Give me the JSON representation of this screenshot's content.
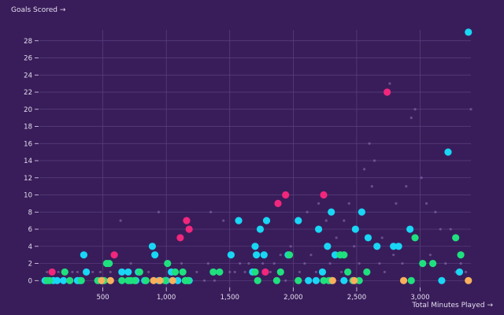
{
  "chart_data": {
    "type": "scatter",
    "title": "",
    "ylabel": "Goals Scored →",
    "xlabel": "Total Minutes Played →",
    "xlim": [
      0,
      3400
    ],
    "ylim": [
      -0.8,
      30
    ],
    "x_ticks": [
      {
        "value": 500,
        "label": "500"
      },
      {
        "value": 1000,
        "label": "1,000"
      },
      {
        "value": 1500,
        "label": "1,500"
      },
      {
        "value": 2000,
        "label": "2,000"
      },
      {
        "value": 2500,
        "label": "2,500"
      },
      {
        "value": 3000,
        "label": "3,000"
      }
    ],
    "y_ticks": [
      {
        "value": 0,
        "label": "0"
      },
      {
        "value": 2,
        "label": "2"
      },
      {
        "value": 4,
        "label": "4"
      },
      {
        "value": 6,
        "label": "6"
      },
      {
        "value": 8,
        "label": "8"
      },
      {
        "value": 10,
        "label": "10"
      },
      {
        "value": 12,
        "label": "12"
      },
      {
        "value": 14,
        "label": "14"
      },
      {
        "value": 16,
        "label": "16"
      },
      {
        "value": 18,
        "label": "18"
      },
      {
        "value": 20,
        "label": "20"
      },
      {
        "value": 22,
        "label": "22"
      },
      {
        "value": 24,
        "label": "24"
      },
      {
        "value": 26,
        "label": "26"
      },
      {
        "value": 28,
        "label": "28"
      }
    ],
    "grid": true,
    "colors": {
      "background": "#391d5a",
      "grid": "#5a4180",
      "cyan": "#19d6f5",
      "green": "#1fe07e",
      "pink": "#f0277c",
      "orange": "#f8b05c",
      "faint": "#8a6fae"
    },
    "series": [
      {
        "color": "cyan",
        "points": [
          [
            45,
            0
          ],
          [
            110,
            0
          ],
          [
            140,
            0
          ],
          [
            190,
            0
          ],
          [
            300,
            0
          ],
          [
            320,
            0
          ],
          [
            350,
            3
          ],
          [
            370,
            1
          ],
          [
            650,
            1
          ],
          [
            700,
            1
          ],
          [
            760,
            0
          ],
          [
            780,
            1
          ],
          [
            830,
            0
          ],
          [
            890,
            4
          ],
          [
            910,
            3
          ],
          [
            940,
            0
          ],
          [
            1000,
            0
          ],
          [
            1040,
            1
          ],
          [
            1090,
            0
          ],
          [
            1150,
            0
          ],
          [
            1180,
            0
          ],
          [
            1510,
            3
          ],
          [
            1570,
            7
          ],
          [
            1680,
            1
          ],
          [
            1700,
            4
          ],
          [
            1710,
            3
          ],
          [
            1740,
            6
          ],
          [
            1770,
            3
          ],
          [
            1790,
            7
          ],
          [
            1960,
            3
          ],
          [
            2040,
            7
          ],
          [
            2120,
            0
          ],
          [
            2180,
            0
          ],
          [
            2200,
            6
          ],
          [
            2230,
            1
          ],
          [
            2270,
            4
          ],
          [
            2300,
            8
          ],
          [
            2330,
            3
          ],
          [
            2400,
            0
          ],
          [
            2490,
            6
          ],
          [
            2540,
            8
          ],
          [
            2590,
            5
          ],
          [
            2660,
            4
          ],
          [
            2790,
            4
          ],
          [
            2830,
            4
          ],
          [
            2920,
            6
          ],
          [
            3170,
            0
          ],
          [
            3220,
            15
          ],
          [
            3310,
            1
          ],
          [
            3380,
            29
          ]
        ]
      },
      {
        "color": "green",
        "points": [
          [
            60,
            0
          ],
          [
            80,
            0
          ],
          [
            200,
            1
          ],
          [
            240,
            0
          ],
          [
            330,
            0
          ],
          [
            460,
            0
          ],
          [
            490,
            0
          ],
          [
            510,
            0
          ],
          [
            530,
            2
          ],
          [
            550,
            2
          ],
          [
            650,
            0
          ],
          [
            700,
            0
          ],
          [
            720,
            0
          ],
          [
            750,
            0
          ],
          [
            790,
            1
          ],
          [
            840,
            0
          ],
          [
            990,
            0
          ],
          [
            1010,
            2
          ],
          [
            1070,
            1
          ],
          [
            1130,
            1
          ],
          [
            1150,
            0
          ],
          [
            1170,
            0
          ],
          [
            1370,
            1
          ],
          [
            1420,
            1
          ],
          [
            1700,
            1
          ],
          [
            1720,
            0
          ],
          [
            1870,
            0
          ],
          [
            1900,
            1
          ],
          [
            1970,
            3
          ],
          [
            2040,
            0
          ],
          [
            2240,
            0
          ],
          [
            2280,
            0
          ],
          [
            2300,
            0
          ],
          [
            2370,
            3
          ],
          [
            2400,
            3
          ],
          [
            2430,
            1
          ],
          [
            2470,
            0
          ],
          [
            2520,
            0
          ],
          [
            2580,
            1
          ],
          [
            2930,
            0
          ],
          [
            2960,
            5
          ],
          [
            3020,
            2
          ],
          [
            3100,
            2
          ],
          [
            3280,
            5
          ],
          [
            3320,
            3
          ]
        ]
      },
      {
        "color": "pink",
        "points": [
          [
            100,
            1
          ],
          [
            590,
            3
          ],
          [
            1110,
            5
          ],
          [
            1160,
            7
          ],
          [
            1180,
            6
          ],
          [
            1780,
            1
          ],
          [
            1880,
            9
          ],
          [
            1940,
            10
          ],
          [
            2240,
            10
          ],
          [
            2740,
            22
          ]
        ]
      },
      {
        "color": "orange",
        "points": [
          [
            490,
            0
          ],
          [
            560,
            0
          ],
          [
            900,
            0
          ],
          [
            950,
            0
          ],
          [
            1050,
            0
          ],
          [
            2310,
            0
          ],
          [
            2480,
            0
          ],
          [
            2870,
            0
          ],
          [
            3380,
            0
          ]
        ]
      }
    ],
    "faint_points": [
      [
        60,
        1
      ],
      [
        150,
        1
      ],
      [
        220,
        1
      ],
      [
        260,
        1
      ],
      [
        300,
        1
      ],
      [
        420,
        1
      ],
      [
        480,
        1
      ],
      [
        560,
        1
      ],
      [
        640,
        7
      ],
      [
        720,
        2
      ],
      [
        800,
        1
      ],
      [
        860,
        1
      ],
      [
        940,
        8
      ],
      [
        1060,
        1
      ],
      [
        1120,
        2
      ],
      [
        1200,
        0
      ],
      [
        1240,
        1
      ],
      [
        1300,
        0
      ],
      [
        1330,
        2
      ],
      [
        1350,
        8
      ],
      [
        1380,
        0
      ],
      [
        1450,
        7
      ],
      [
        1500,
        1
      ],
      [
        1540,
        1
      ],
      [
        1580,
        2
      ],
      [
        1620,
        1
      ],
      [
        1650,
        2
      ],
      [
        1760,
        2
      ],
      [
        1820,
        1
      ],
      [
        1850,
        2
      ],
      [
        1900,
        3
      ],
      [
        1940,
        0
      ],
      [
        1980,
        4
      ],
      [
        2050,
        1
      ],
      [
        2090,
        2
      ],
      [
        2110,
        8
      ],
      [
        2140,
        3
      ],
      [
        2180,
        1
      ],
      [
        2200,
        9
      ],
      [
        2260,
        7
      ],
      [
        2290,
        2
      ],
      [
        2340,
        5
      ],
      [
        2380,
        1
      ],
      [
        2400,
        7
      ],
      [
        2440,
        9
      ],
      [
        2480,
        4
      ],
      [
        2520,
        2
      ],
      [
        2560,
        13
      ],
      [
        2600,
        16
      ],
      [
        2620,
        11
      ],
      [
        2640,
        14
      ],
      [
        2680,
        2
      ],
      [
        2700,
        5
      ],
      [
        2720,
        1
      ],
      [
        2760,
        23
      ],
      [
        2790,
        3
      ],
      [
        2810,
        9
      ],
      [
        2860,
        2
      ],
      [
        2890,
        11
      ],
      [
        2930,
        19
      ],
      [
        2960,
        20
      ],
      [
        3010,
        12
      ],
      [
        3050,
        9
      ],
      [
        3080,
        3
      ],
      [
        3120,
        8
      ],
      [
        3160,
        6
      ],
      [
        3200,
        2
      ],
      [
        3240,
        6
      ],
      [
        3280,
        1
      ],
      [
        3320,
        2
      ],
      [
        3360,
        1
      ],
      [
        3400,
        20
      ]
    ]
  }
}
